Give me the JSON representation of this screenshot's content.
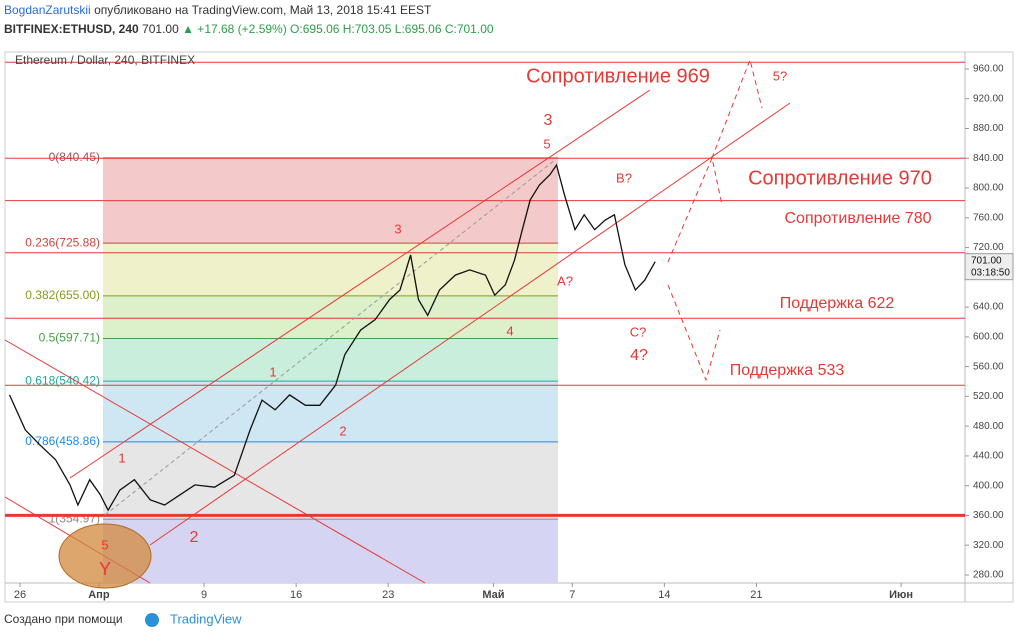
{
  "header": {
    "author": "BogdanZarutskii",
    "published": "опубликовано на TradingView.com, Май 13, 2018 15:41 EEST",
    "symbol": "BITFINEX:ETHUSD, 240",
    "last": "701.00",
    "change": "▲ +17.68 (+2.59%)",
    "ohlc": "O:695.06 H:703.05 L:695.06 C:701.00"
  },
  "chart_data": {
    "type": "line",
    "title": "Ethereum / Dollar, 240, BITFINEX",
    "color": "#111111",
    "x": [
      -0.8,
      0.4,
      1.5,
      2.7,
      3.8,
      4.4,
      5.3,
      6.1,
      6.7,
      7.6,
      8.7,
      9.9,
      11.0,
      12.2,
      13.3,
      14.8,
      16.3,
      17.5,
      18.4,
      19.4,
      20.5,
      21.7,
      22.8,
      24.0,
      24.7,
      25.9,
      27.0,
      28.1,
      28.9,
      29.7,
      30.3,
      31.0,
      31.9,
      33.1,
      34.2,
      35.4,
      36.1,
      36.9,
      37.6,
      38.2,
      38.8,
      39.5,
      40.3,
      40.8,
      41.4,
      42.2,
      42.9,
      43.7,
      44.5,
      45.2,
      46.0,
      46.8,
      47.5,
      48.3
    ],
    "values": [
      522,
      475,
      455,
      435,
      401,
      374,
      408,
      388,
      367,
      394,
      408,
      381,
      374,
      388,
      401,
      398,
      414,
      475,
      515,
      502,
      522,
      508,
      508,
      535,
      576,
      609,
      623,
      650,
      663,
      710,
      650,
      629,
      663,
      683,
      690,
      683,
      656,
      670,
      703,
      744,
      784,
      804,
      818,
      831,
      791,
      744,
      764,
      744,
      757,
      764,
      697,
      663,
      676,
      701
    ],
    "xlim": [
      -1.14,
      71.86
    ],
    "xticks": [
      {
        "value": 0,
        "label": "26"
      },
      {
        "value": 6,
        "label": "Апр"
      },
      {
        "value": 14,
        "label": "9"
      },
      {
        "value": 21,
        "label": "16"
      },
      {
        "value": 28,
        "label": "23"
      },
      {
        "value": 36,
        "label": "Май"
      },
      {
        "value": 42,
        "label": "7"
      },
      {
        "value": 49,
        "label": "14"
      },
      {
        "value": 56,
        "label": "21"
      },
      {
        "value": 67,
        "label": "Июн"
      }
    ],
    "ylim": [
      269.2,
      982.8
    ],
    "yticks": [
      {
        "value": 280,
        "label": "280.00"
      },
      {
        "value": 320,
        "label": "320.00"
      },
      {
        "value": 360,
        "label": "360.00"
      },
      {
        "value": 400,
        "label": "400.00"
      },
      {
        "value": 440,
        "label": "440.00"
      },
      {
        "value": 480,
        "label": "480.00"
      },
      {
        "value": 520,
        "label": "520.00"
      },
      {
        "value": 560,
        "label": "560.00"
      },
      {
        "value": 600,
        "label": "600.00"
      },
      {
        "value": 640,
        "label": "640.00"
      },
      {
        "value": 680,
        "label": "680.00"
      },
      {
        "value": 720,
        "label": "720.00"
      },
      {
        "value": 760,
        "label": "760.00"
      },
      {
        "value": 800,
        "label": "800.00"
      },
      {
        "value": 840,
        "label": "840.00"
      },
      {
        "value": 880,
        "label": "880.00"
      },
      {
        "value": 920,
        "label": "920.00"
      },
      {
        "value": 960,
        "label": "960.00"
      }
    ],
    "price_label": {
      "value": 701,
      "label": "701.00",
      "countdown": "03:18:50"
    },
    "fib_levels": [
      {
        "value": 840.45,
        "label": "0(840.45)",
        "color": "#b04a4a"
      },
      {
        "value": 725.88,
        "label": "0.236(725.88)",
        "color": "#d0453d"
      },
      {
        "value": 655.0,
        "label": "0.382(655.00)",
        "color": "#8a9a1e"
      },
      {
        "value": 597.71,
        "label": "0.5(597.71)",
        "color": "#43a047"
      },
      {
        "value": 540.42,
        "label": "0.618(540.42)",
        "color": "#26a69a"
      },
      {
        "value": 458.86,
        "label": "0.786(458.86)",
        "color": "#1e88e5"
      },
      {
        "value": 354.97,
        "label": "1(354.97)",
        "color": "#888888"
      }
    ],
    "horizontal_lines": [
      969,
      840,
      783,
      713,
      625,
      535,
      360
    ],
    "annotations": [
      "Сопротивление 969",
      "Сопротивление 970",
      "Сопротивление 780",
      "Поддержка 622",
      "Поддержка 533",
      "3",
      "5",
      "B?",
      "3",
      "A?",
      "4",
      "C?",
      "4?",
      "1",
      "1",
      "2",
      "2",
      "5",
      "Y",
      "5?"
    ]
  },
  "footer": {
    "made_with": "Создано при помощи",
    "brand": "TradingView"
  }
}
